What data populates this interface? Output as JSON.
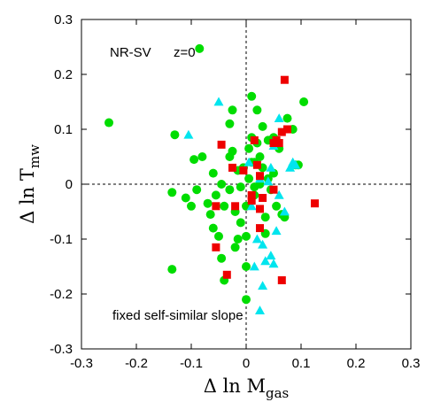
{
  "chart_data": {
    "type": "scatter",
    "title": "",
    "xlabel": {
      "main": "Δ ln M",
      "sub": "gas"
    },
    "ylabel": {
      "main": "Δ ln T",
      "sub": "mw"
    },
    "xlim": [
      -0.3,
      0.3
    ],
    "ylim": [
      -0.3,
      0.3
    ],
    "xticks": [
      "-0.3",
      "-0.2",
      "-0.1",
      "0",
      "0.1",
      "0.2",
      "0.3"
    ],
    "yticks": [
      "0.3",
      "0.2",
      "0.1",
      "0",
      "-0.1",
      "-0.2",
      "-0.3"
    ],
    "grid": false,
    "zero_lines": true,
    "annotations": {
      "sample": "NR-SV",
      "redshift": "z=0",
      "note": "fixed self-similar slope"
    },
    "colors": {
      "green": "#00dd00",
      "red": "#ee0000",
      "cyan": "#00e5ee"
    },
    "series": [
      {
        "marker": "circle",
        "color": "green",
        "points": [
          [
            -0.25,
            0.112
          ],
          [
            -0.085,
            0.247
          ],
          [
            -0.13,
            0.09
          ],
          [
            -0.135,
            -0.015
          ],
          [
            -0.135,
            -0.155
          ],
          [
            -0.095,
            0.045
          ],
          [
            -0.09,
            -0.01
          ],
          [
            -0.1,
            -0.04
          ],
          [
            -0.08,
            0.05
          ],
          [
            -0.07,
            -0.035
          ],
          [
            -0.065,
            -0.055
          ],
          [
            -0.06,
            0.02
          ],
          [
            -0.055,
            -0.02
          ],
          [
            -0.06,
            -0.08
          ],
          [
            -0.05,
            -0.095
          ],
          [
            -0.045,
            0.0
          ],
          [
            -0.04,
            -0.04
          ],
          [
            -0.045,
            -0.135
          ],
          [
            -0.04,
            -0.175
          ],
          [
            -0.03,
            0.11
          ],
          [
            -0.025,
            0.06
          ],
          [
            -0.03,
            -0.01
          ],
          [
            -0.02,
            -0.05
          ],
          [
            -0.025,
            0.135
          ],
          [
            -0.015,
            0.025
          ],
          [
            -0.01,
            -0.005
          ],
          [
            -0.01,
            -0.07
          ],
          [
            -0.015,
            -0.1
          ],
          [
            -0.02,
            -0.115
          ],
          [
            -0.005,
            0.03
          ],
          [
            0.0,
            -0.04
          ],
          [
            0.0,
            -0.095
          ],
          [
            0.0,
            -0.15
          ],
          [
            0.0,
            -0.21
          ],
          [
            0.005,
            0.065
          ],
          [
            0.005,
            0.01
          ],
          [
            0.01,
            0.085
          ],
          [
            0.01,
            0.16
          ],
          [
            0.015,
            0.04
          ],
          [
            0.015,
            -0.005
          ],
          [
            0.015,
            -0.02
          ],
          [
            0.02,
            0.135
          ],
          [
            0.02,
            0.075
          ],
          [
            0.025,
            0.05
          ],
          [
            0.025,
            0.0
          ],
          [
            0.03,
            0.105
          ],
          [
            0.03,
            0.03
          ],
          [
            0.035,
            -0.06
          ],
          [
            0.035,
            -0.09
          ],
          [
            0.04,
            0.08
          ],
          [
            0.045,
            -0.01
          ],
          [
            0.05,
            0.085
          ],
          [
            0.05,
            0.02
          ],
          [
            0.055,
            -0.04
          ],
          [
            0.06,
            0.065
          ],
          [
            0.065,
            -0.055
          ],
          [
            0.07,
            -0.06
          ],
          [
            0.075,
            0.12
          ],
          [
            0.085,
            0.1
          ],
          [
            0.09,
            0.035
          ],
          [
            0.095,
            0.035
          ],
          [
            0.105,
            0.15
          ],
          [
            -0.11,
            -0.025
          ],
          [
            -0.005,
            0.03
          ],
          [
            0.01,
            0.04
          ],
          [
            -0.03,
            0.05
          ],
          [
            0.04,
            0.01
          ]
        ]
      },
      {
        "marker": "square",
        "color": "red",
        "points": [
          [
            -0.045,
            0.072
          ],
          [
            -0.055,
            -0.115
          ],
          [
            -0.035,
            -0.165
          ],
          [
            -0.055,
            -0.04
          ],
          [
            -0.02,
            -0.04
          ],
          [
            -0.005,
            0.025
          ],
          [
            0.01,
            -0.03
          ],
          [
            0.015,
            0.08
          ],
          [
            0.02,
            0.035
          ],
          [
            0.025,
            0.015
          ],
          [
            0.025,
            -0.045
          ],
          [
            0.025,
            -0.08
          ],
          [
            0.03,
            -0.025
          ],
          [
            0.05,
            0.075
          ],
          [
            0.055,
            0.08
          ],
          [
            0.06,
            0.075
          ],
          [
            0.065,
            0.095
          ],
          [
            0.065,
            -0.175
          ],
          [
            0.07,
            0.19
          ],
          [
            0.05,
            -0.01
          ],
          [
            0.125,
            -0.035
          ],
          [
            0.01,
            -0.02
          ],
          [
            -0.025,
            0.03
          ],
          [
            0.075,
            0.1
          ]
        ]
      },
      {
        "marker": "triangle",
        "color": "cyan",
        "points": [
          [
            -0.105,
            0.09
          ],
          [
            -0.05,
            0.15
          ],
          [
            0.01,
            -0.04
          ],
          [
            0.015,
            -0.15
          ],
          [
            0.02,
            -0.1
          ],
          [
            0.025,
            -0.23
          ],
          [
            0.03,
            -0.11
          ],
          [
            0.03,
            -0.185
          ],
          [
            0.035,
            -0.14
          ],
          [
            0.045,
            -0.13
          ],
          [
            0.05,
            -0.145
          ],
          [
            0.055,
            -0.085
          ],
          [
            0.045,
            0.03
          ],
          [
            0.06,
            -0.02
          ],
          [
            0.08,
            0.03
          ],
          [
            0.085,
            0.04
          ],
          [
            0.07,
            -0.05
          ],
          [
            0.09,
            0.035
          ],
          [
            0.025,
            0.01
          ],
          [
            0.04,
            0.005
          ],
          [
            0.05,
            0.07
          ],
          [
            0.005,
            0.04
          ],
          [
            0.06,
            0.12
          ]
        ]
      }
    ]
  }
}
